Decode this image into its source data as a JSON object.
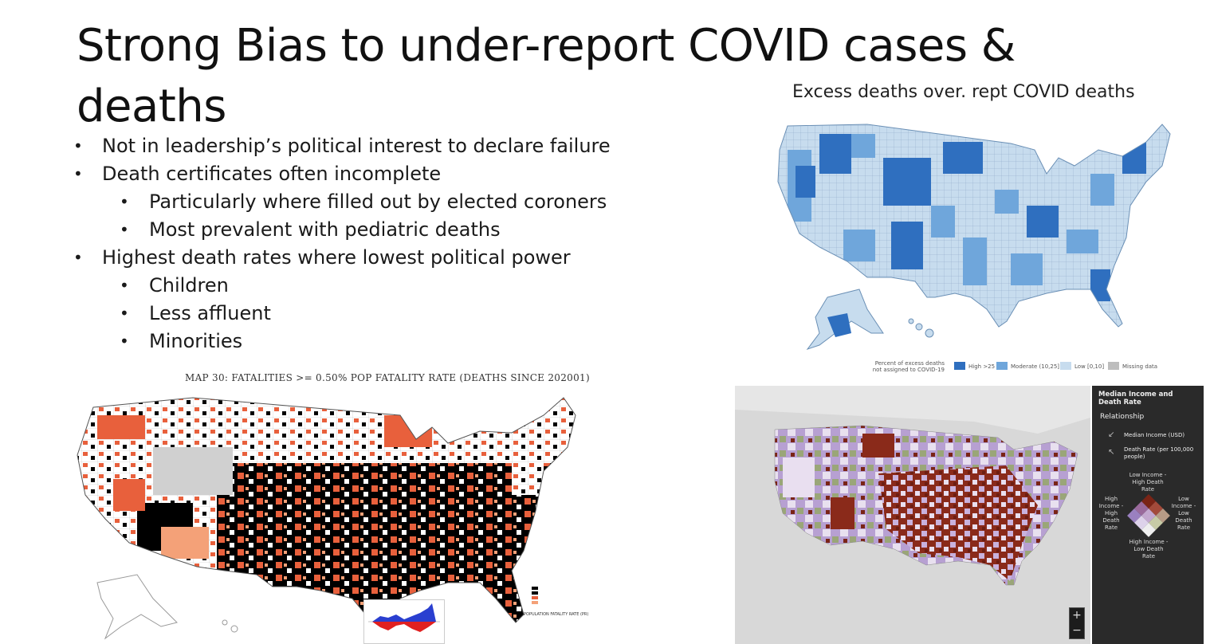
{
  "slide": {
    "title": "Strong Bias to under-report COVID cases & deaths",
    "bullets": [
      {
        "level": 1,
        "text": "Not in leadership’s political interest to declare failure"
      },
      {
        "level": 1,
        "text": "Death certificates often incomplete"
      },
      {
        "level": 2,
        "text": "Particularly where filled out by elected coroners"
      },
      {
        "level": 2,
        "text": "Most prevalent with pediatric deaths"
      },
      {
        "level": 1,
        "text": "Highest death rates where lowest political power"
      },
      {
        "level": 2,
        "text": "Children"
      },
      {
        "level": 2,
        "text": "Less affluent"
      },
      {
        "level": 2,
        "text": "Minorities"
      }
    ]
  },
  "map_top_right": {
    "title": "Excess deaths over. rept COVID deaths",
    "legend_title": "Percent of excess deaths not assigned to COVID-19",
    "legend": [
      {
        "label": "High >25",
        "color": "#2f6fbf"
      },
      {
        "label": "Moderate (10,25]",
        "color": "#6fa6db"
      },
      {
        "label": "Low [0,10]",
        "color": "#c7dcee"
      },
      {
        "label": "Missing data",
        "color": "#bdbdbd"
      }
    ]
  },
  "map_bottom_left": {
    "title": "MAP 30: FATALITIES >= 0.50% POP FATALITY RATE (DEATHS SINCE 202001)",
    "legend_title": "POPULATION FATALITY RATE (PR)",
    "colors": {
      "high": "#000000",
      "mid": "#e8603c",
      "low": "#f4a178",
      "missing": "#d0d0d0"
    }
  },
  "map_bottom_right": {
    "legend_title": "Median Income and Death Rate",
    "relationship_label": "Relationship",
    "variables": [
      "Median Income (USD)",
      "Death Rate (per 100,000 people)"
    ],
    "corners": {
      "top": "Low Income - High Death Rate",
      "left": "High Income - High Death Rate",
      "right": "Low Income - Low Death Rate",
      "bottom": "High Income - Low Death Rate"
    },
    "zoom_in": "+",
    "zoom_out": "−"
  }
}
